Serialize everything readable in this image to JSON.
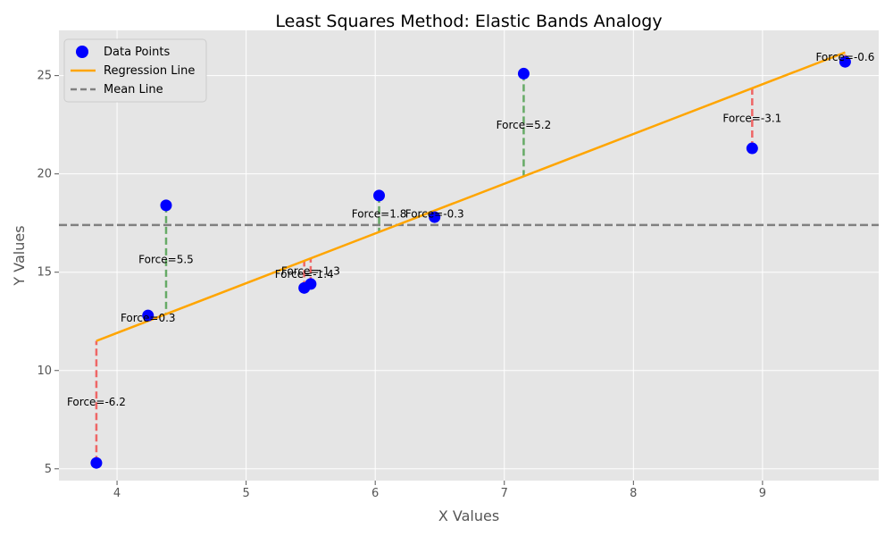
{
  "chart_data": {
    "type": "scatter",
    "title": "Least Squares Method: Elastic Bands Analogy",
    "xlabel": "X Values",
    "ylabel": "Y Values",
    "xlim": [
      3.55,
      9.9
    ],
    "ylim": [
      4.4,
      27.3
    ],
    "xticks": [
      4,
      5,
      6,
      7,
      8,
      9
    ],
    "yticks": [
      5,
      10,
      15,
      20,
      25
    ],
    "grid": true,
    "legend_position": "top-left",
    "legend": [
      {
        "label": "Data Points",
        "kind": "marker",
        "color": "#0000ff"
      },
      {
        "label": "Regression Line",
        "kind": "line",
        "color": "#ffa500"
      },
      {
        "label": "Mean Line",
        "kind": "dashed",
        "color": "#808080"
      }
    ],
    "points": [
      {
        "x": 3.84,
        "y": 5.3,
        "force_label": "Force=-6.2"
      },
      {
        "x": 4.24,
        "y": 12.8,
        "force_label": "Force=0.3"
      },
      {
        "x": 4.38,
        "y": 18.4,
        "force_label": "Force=5.5"
      },
      {
        "x": 5.45,
        "y": 14.2,
        "force_label": "Force=-1.4"
      },
      {
        "x": 5.5,
        "y": 14.4,
        "force_label": "Force=-1.3"
      },
      {
        "x": 6.03,
        "y": 18.9,
        "force_label": "Force=1.8"
      },
      {
        "x": 6.46,
        "y": 17.8,
        "force_label": "Force=-0.3"
      },
      {
        "x": 7.15,
        "y": 25.1,
        "force_label": "Force=5.2"
      },
      {
        "x": 8.92,
        "y": 21.3,
        "force_label": "Force=-3.1"
      },
      {
        "x": 9.64,
        "y": 25.7,
        "force_label": "Force=-0.6"
      }
    ],
    "regression_line": {
      "slope": 2.53,
      "intercept": 1.79,
      "x_start": 3.84,
      "x_end": 9.64
    },
    "mean_y": 17.4,
    "colors": {
      "points": "#0000ff",
      "regression": "#ffa500",
      "mean": "#808080",
      "band_positive": "#66aa66",
      "band_negative": "#ee6666",
      "plot_background": "#e5e5e5",
      "grid": "#ffffff"
    }
  }
}
